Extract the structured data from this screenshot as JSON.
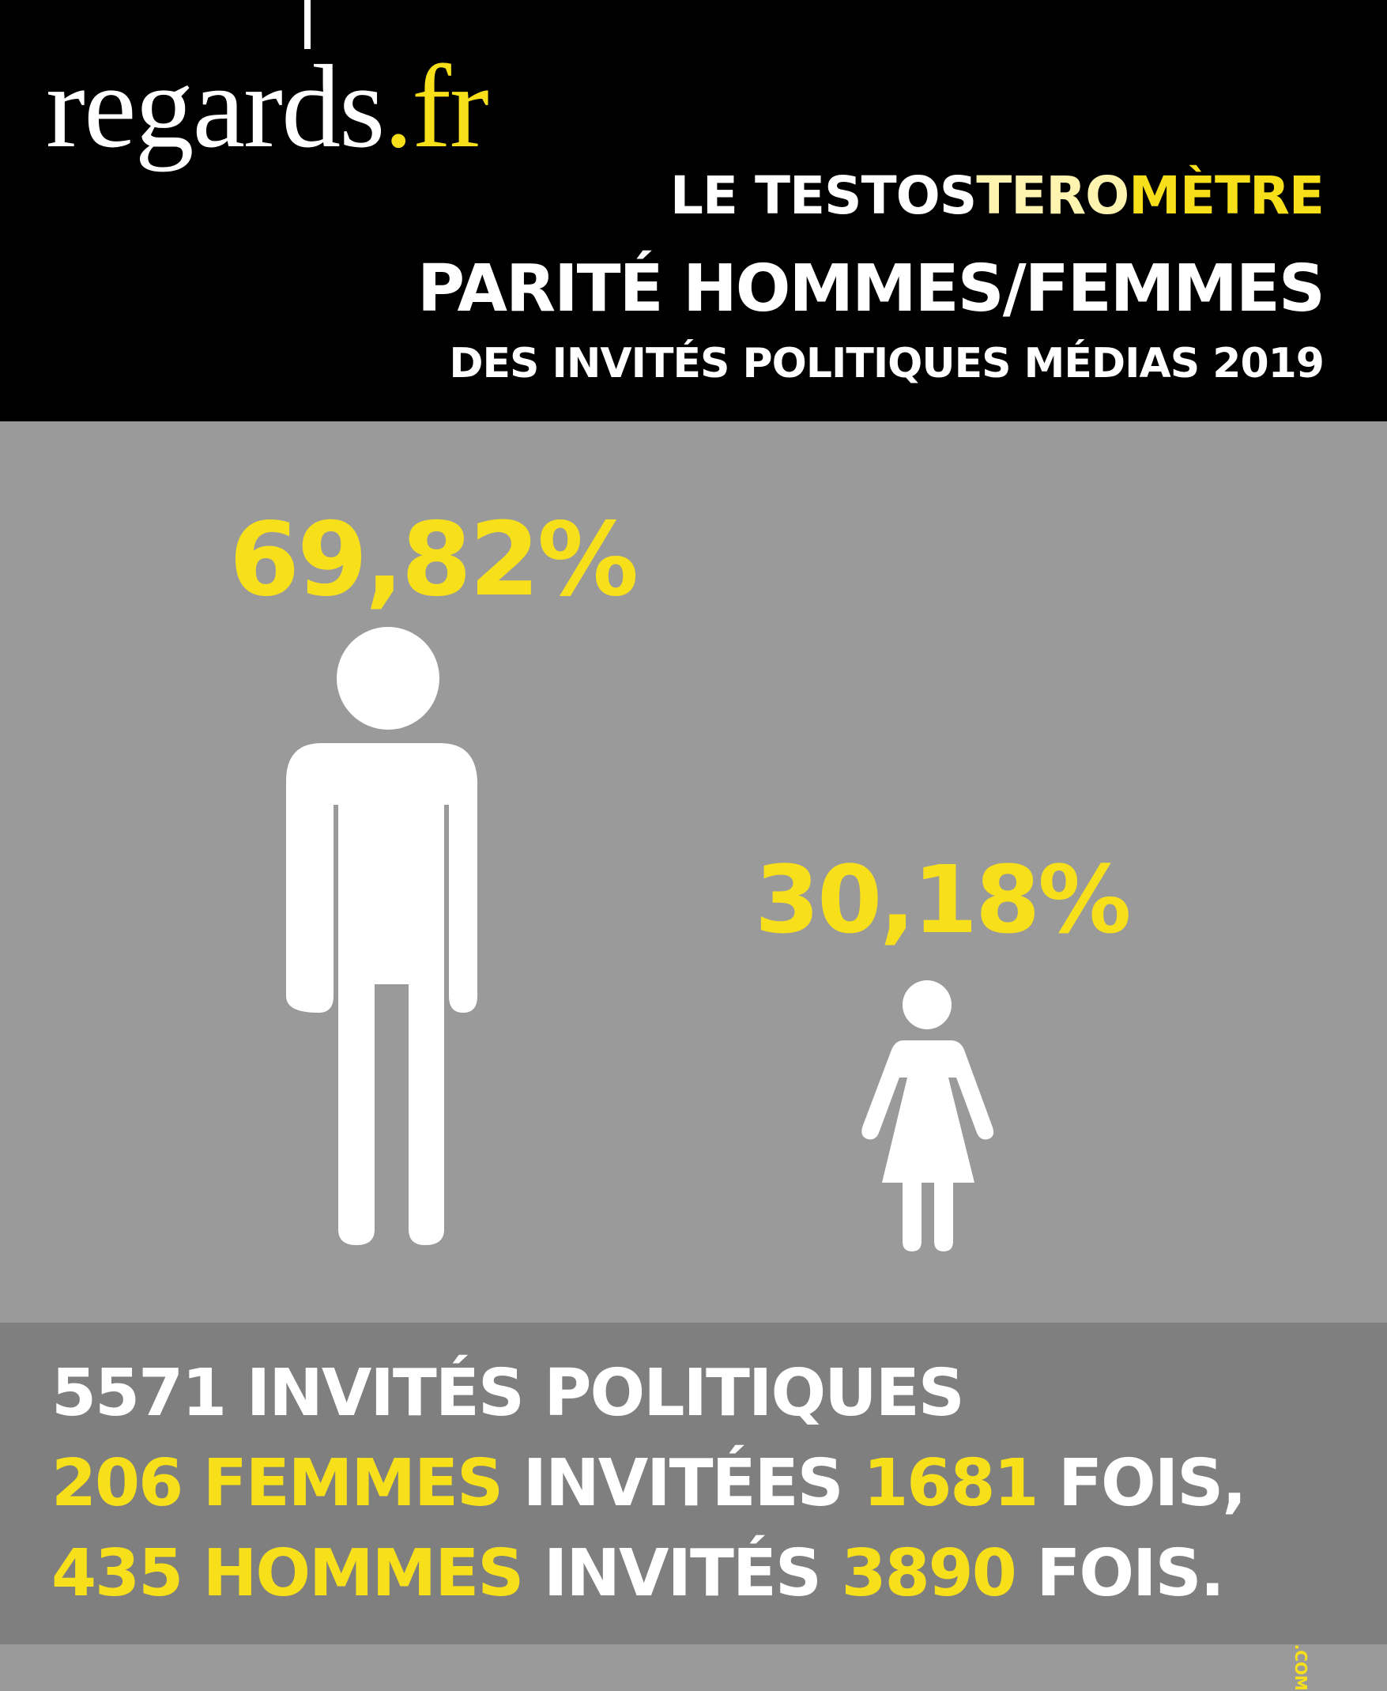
{
  "brand": {
    "name": "regards",
    "tld": ".fr"
  },
  "header": {
    "kicker_white": "LE TESTOS",
    "kicker_light": "TERO",
    "kicker_yellow": "MÈTRE",
    "title": "PARITÉ HOMMES/FEMMES",
    "subtitle": "DES INVITÉS POLITIQUES MÉDIAS 2019"
  },
  "stats": {
    "men_pct": "69,82%",
    "women_pct": "30,18%",
    "men_share": 69.82,
    "women_share": 30.18
  },
  "icons": {
    "men": "man-icon",
    "women": "woman-icon"
  },
  "source": "SOURCE : POLITIQUEMEDIA.COM",
  "footer": {
    "line1": "5571 INVITÉS POLITIQUES",
    "l2_a": "206 FEMMES",
    "l2_b": " INVITÉES ",
    "l2_c": "1681",
    "l2_d": " FOIS,",
    "l3_a": "435 HOMMES",
    "l3_b": " INVITÉS ",
    "l3_c": "3890",
    "l3_d": " FOIS."
  },
  "colors": {
    "accent": "#f7e01a",
    "header_bg": "#000000",
    "main_bg": "#9a9a9a",
    "footer_bg": "#7f7f7f",
    "icon": "#ffffff"
  }
}
